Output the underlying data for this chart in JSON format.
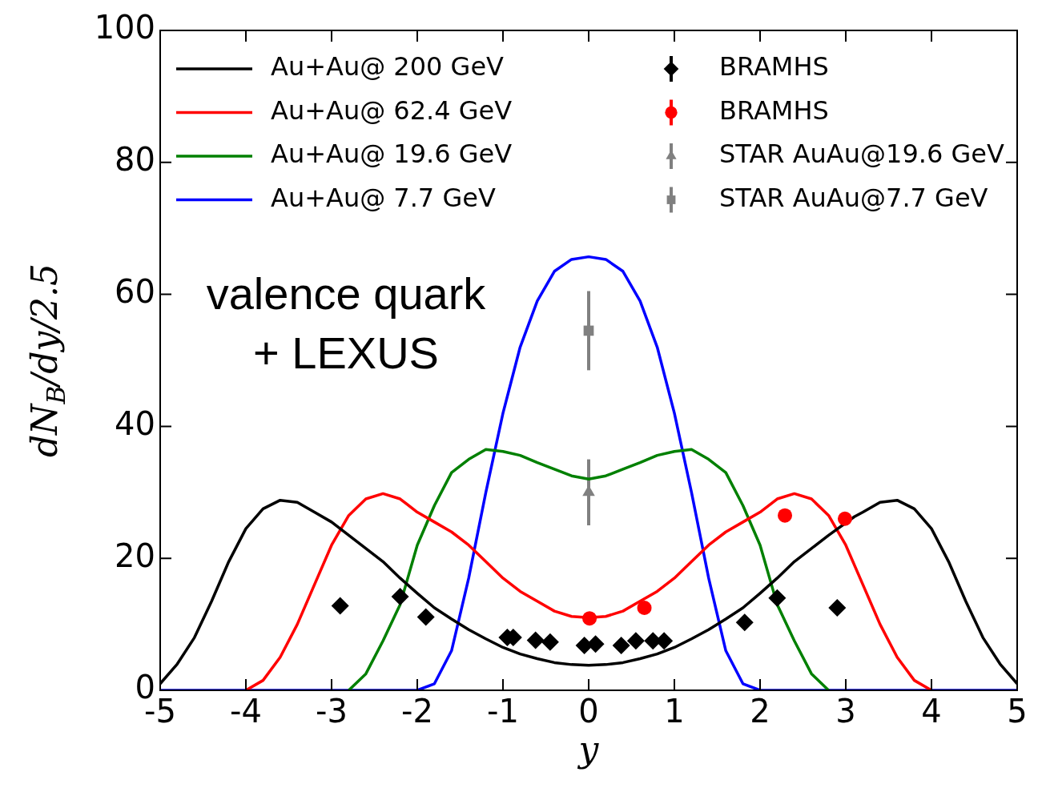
{
  "chart_data": {
    "type": "line",
    "xlabel": "y",
    "ylabel": "dN$_{B}$/dy/2.5",
    "xlim": [
      -5,
      5
    ],
    "ylim": [
      0,
      100
    ],
    "xticks": [
      -5,
      -4,
      -3,
      -2,
      -1,
      0,
      1,
      2,
      3,
      4,
      5
    ],
    "yticks": [
      0,
      20,
      40,
      60,
      80,
      100
    ],
    "grid": false,
    "legend": "top",
    "annotations": [
      "valence quark\n+ LEXUS"
    ],
    "series": [
      {
        "name": "Au+Au@ 200 GeV",
        "type": "line",
        "color": "#000000",
        "x": [
          -5,
          -4.8,
          -4.6,
          -4.4,
          -4.2,
          -4,
          -3.8,
          -3.6,
          -3.4,
          -3.2,
          -3,
          -2.8,
          -2.6,
          -2.4,
          -2.2,
          -2,
          -1.8,
          -1.6,
          -1.4,
          -1.2,
          -1,
          -0.8,
          -0.6,
          -0.4,
          -0.2,
          0,
          0.2,
          0.4,
          0.6,
          0.8,
          1,
          1.2,
          1.4,
          1.6,
          1.8,
          2,
          2.2,
          2.4,
          2.6,
          2.8,
          3.1,
          3.2,
          3.4,
          3.6,
          3.8,
          4,
          4.2,
          4.4,
          4.6,
          4.8,
          5
        ],
        "values": [
          1,
          4,
          8,
          13.5,
          19.5,
          24.5,
          27.5,
          28.8,
          28.5,
          27,
          25.5,
          23.5,
          21.5,
          19.5,
          17,
          14.7,
          12.5,
          10.8,
          9.2,
          7.8,
          6.5,
          5.5,
          4.8,
          4.2,
          3.9,
          3.8,
          3.9,
          4.2,
          4.8,
          5.5,
          6.5,
          7.8,
          9.2,
          10.8,
          12.5,
          14.7,
          17,
          19.5,
          21.5,
          23.5,
          26.3,
          27,
          28.5,
          28.8,
          27.5,
          24.5,
          19.5,
          13.5,
          8,
          4,
          1
        ]
      },
      {
        "name": "Au+Au@ 62.4 GeV",
        "type": "line",
        "color": "#ff0000",
        "x": [
          -4,
          -3.8,
          -3.6,
          -3.4,
          -3.2,
          -3,
          -2.8,
          -2.6,
          -2.4,
          -2.2,
          -2,
          -1.8,
          -1.6,
          -1.4,
          -1.2,
          -1,
          -0.8,
          -0.6,
          -0.4,
          -0.2,
          0,
          0.2,
          0.4,
          0.6,
          0.8,
          1,
          1.2,
          1.4,
          1.6,
          1.8,
          2,
          2.2,
          2.4,
          2.6,
          2.8,
          3,
          3.2,
          3.4,
          3.6,
          3.8,
          4
        ],
        "values": [
          0,
          1.5,
          5,
          10,
          16,
          22,
          26.5,
          29,
          29.8,
          29,
          27,
          25.5,
          24,
          22,
          19.5,
          17,
          15,
          13.5,
          12,
          11.2,
          11,
          11.2,
          12,
          13.5,
          15,
          17,
          19.5,
          22,
          24,
          25.5,
          27,
          29,
          29.8,
          29,
          26.5,
          22,
          16,
          10,
          5,
          1.5,
          0
        ]
      },
      {
        "name": "Au+Au@ 19.6 GeV",
        "type": "line",
        "color": "#008000",
        "x": [
          -2.8,
          -2.6,
          -2.4,
          -2.2,
          -2,
          -1.8,
          -1.6,
          -1.4,
          -1.2,
          -1,
          -0.8,
          -0.6,
          -0.4,
          -0.2,
          0,
          0.2,
          0.4,
          0.6,
          0.8,
          1,
          1.2,
          1.4,
          1.6,
          1.8,
          2,
          2.2,
          2.4,
          2.6,
          2.8
        ],
        "values": [
          0,
          2.5,
          7.5,
          13,
          22,
          28,
          33,
          35,
          36.5,
          36.2,
          35.6,
          34.5,
          33.5,
          32.5,
          32,
          32.5,
          33.5,
          34.5,
          35.6,
          36.2,
          36.5,
          35,
          33,
          28,
          22,
          13,
          7.5,
          2.5,
          0
        ]
      },
      {
        "name": "Au+Au@ 7.7 GeV",
        "type": "line",
        "color": "#0000ff",
        "x": [
          -5,
          -2,
          -1.8,
          -1.6,
          -1.4,
          -1.2,
          -1,
          -0.8,
          -0.6,
          -0.4,
          -0.2,
          0,
          0.2,
          0.4,
          0.6,
          0.8,
          1,
          1.2,
          1.4,
          1.6,
          1.8,
          2,
          5
        ],
        "values": [
          0,
          0,
          1,
          6,
          17,
          30,
          42,
          52,
          59,
          63.5,
          65.3,
          65.7,
          65.3,
          63.5,
          59,
          52,
          42,
          30,
          17,
          6,
          1,
          0,
          0
        ]
      },
      {
        "name": "BRAMHS",
        "type": "scatter",
        "marker": "diamond",
        "color": "#000000",
        "x": [
          -2.9,
          -2.2,
          -1.9,
          -0.95,
          -0.88,
          -0.62,
          -0.45,
          -0.05,
          0.08,
          0.38,
          0.55,
          0.75,
          0.88,
          1.82,
          2.2,
          2.9
        ],
        "values": [
          12.8,
          14.2,
          11.1,
          8,
          8,
          7.6,
          7.3,
          6.8,
          7,
          6.8,
          7.5,
          7.5,
          7.5,
          10.3,
          14,
          12.5
        ]
      },
      {
        "name": "BRAMHS",
        "type": "scatter",
        "marker": "circle",
        "color": "#ff0000",
        "x": [
          0.01,
          0.65,
          2.29,
          2.99
        ],
        "values": [
          10.9,
          12.5,
          26.5,
          26
        ]
      },
      {
        "name": "STAR AuAu@19.6 GeV",
        "type": "scatter",
        "marker": "triangle",
        "color": "#808080",
        "x": [
          0
        ],
        "values": [
          30
        ],
        "errors": [
          5
        ]
      },
      {
        "name": "STAR AuAu@7.7 GeV",
        "type": "scatter",
        "marker": "square",
        "color": "#808080",
        "x": [
          0
        ],
        "values": [
          54.5
        ],
        "errors": [
          6
        ]
      }
    ]
  }
}
